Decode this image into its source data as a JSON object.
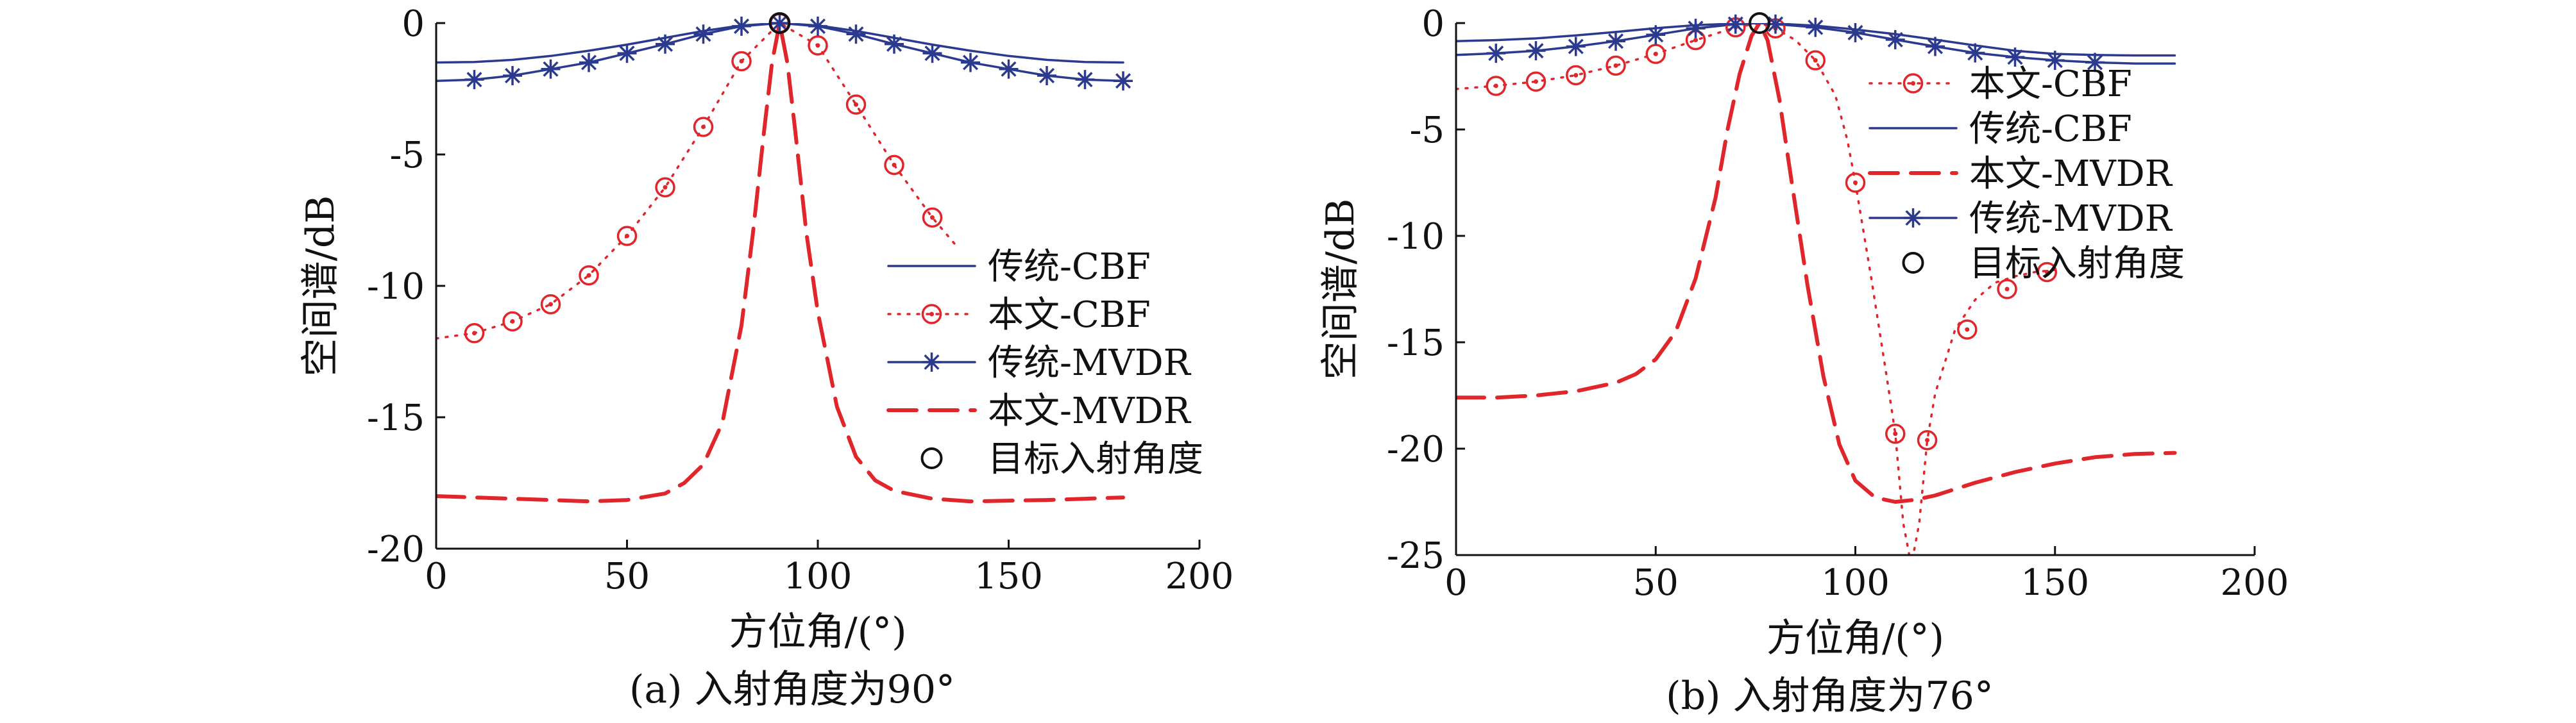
{
  "colors": {
    "blue": "#2b3a8f",
    "red": "#e0262b",
    "black": "#111111",
    "background": "#ffffff"
  },
  "chart_data": [
    {
      "type": "line",
      "caption": "(a) 入射角度为90°",
      "xlabel": "方位角/(°)",
      "ylabel": "空间谱/dB",
      "xlim": [
        0,
        200
      ],
      "ylim": [
        -20,
        0
      ],
      "xticks": [
        0,
        50,
        100,
        150,
        200
      ],
      "yticks": [
        0,
        -5,
        -10,
        -15,
        -20
      ],
      "xtick_labels": [
        "0",
        "50",
        "100",
        "150",
        "200"
      ],
      "ytick_labels": [
        "0",
        "-5",
        "-10",
        "-15",
        "-20"
      ],
      "grid": false,
      "legend_position": "bottom-right",
      "legend_order": [
        "trad_cbf",
        "prop_cbf",
        "trad_mvdr",
        "prop_mvdr",
        "target"
      ],
      "series": [
        {
          "key": "trad_cbf",
          "name": "传统-CBF",
          "color": "#2b3a8f",
          "style": "solid",
          "marker": "none",
          "x": [
            0,
            10,
            20,
            30,
            40,
            50,
            60,
            70,
            80,
            90,
            100,
            110,
            120,
            130,
            140,
            150,
            160,
            170,
            180
          ],
          "y": [
            -1.5,
            -1.48,
            -1.4,
            -1.25,
            -1.05,
            -0.82,
            -0.56,
            -0.3,
            -0.09,
            0,
            -0.09,
            -0.3,
            -0.56,
            -0.82,
            -1.05,
            -1.25,
            -1.4,
            -1.48,
            -1.5
          ]
        },
        {
          "key": "prop_cbf",
          "name": "本文-CBF",
          "color": "#e0262b",
          "style": "dotted",
          "marker": "circle-dot",
          "x": [
            0,
            10,
            20,
            30,
            40,
            50,
            60,
            70,
            80,
            90,
            100,
            110,
            120,
            130,
            137
          ],
          "y": [
            -12,
            -11.8,
            -11.35,
            -10.7,
            -9.6,
            -8.1,
            -6.25,
            -3.95,
            -1.45,
            0,
            -0.85,
            -3.1,
            -5.4,
            -7.4,
            -8.6
          ],
          "marker_x": [
            10,
            20,
            30,
            40,
            50,
            60,
            70,
            80,
            90,
            100,
            110,
            120,
            130
          ],
          "marker_y": [
            -11.8,
            -11.35,
            -10.7,
            -9.6,
            -8.1,
            -6.25,
            -3.95,
            -1.45,
            0,
            -0.85,
            -3.1,
            -5.4,
            -7.4
          ]
        },
        {
          "key": "trad_mvdr",
          "name": "传统-MVDR",
          "color": "#2b3a8f",
          "style": "solid",
          "marker": "asterisk",
          "x": [
            0,
            10,
            20,
            30,
            40,
            50,
            60,
            70,
            80,
            90,
            100,
            110,
            120,
            130,
            140,
            150,
            160,
            170,
            180
          ],
          "y": [
            -2.2,
            -2.15,
            -2.0,
            -1.75,
            -1.5,
            -1.15,
            -0.8,
            -0.42,
            -0.12,
            0,
            -0.12,
            -0.42,
            -0.8,
            -1.15,
            -1.5,
            -1.75,
            -2.0,
            -2.15,
            -2.2
          ],
          "marker_x": [
            10,
            20,
            30,
            40,
            50,
            60,
            70,
            80,
            90,
            100,
            110,
            120,
            130,
            140,
            150,
            160,
            170,
            180
          ],
          "marker_y": [
            -2.15,
            -2.0,
            -1.75,
            -1.5,
            -1.15,
            -0.8,
            -0.42,
            -0.12,
            0,
            -0.12,
            -0.42,
            -0.8,
            -1.15,
            -1.5,
            -1.75,
            -2.0,
            -2.15,
            -2.2
          ]
        },
        {
          "key": "prop_mvdr",
          "name": "本文-MVDR",
          "color": "#e0262b",
          "style": "dashed",
          "marker": "none",
          "x": [
            0,
            20,
            40,
            50,
            60,
            65,
            70,
            75,
            80,
            83,
            86,
            88,
            90,
            92,
            94,
            97,
            100,
            105,
            110,
            115,
            120,
            130,
            140,
            160,
            180
          ],
          "y": [
            -18.0,
            -18.1,
            -18.2,
            -18.15,
            -17.9,
            -17.5,
            -16.8,
            -15.2,
            -11.5,
            -8.0,
            -4.0,
            -1.5,
            0,
            -1.5,
            -4.0,
            -8.0,
            -11.0,
            -14.6,
            -16.5,
            -17.4,
            -17.8,
            -18.1,
            -18.2,
            -18.15,
            -18.05
          ]
        },
        {
          "key": "target",
          "name": "目标入射角度",
          "color": "#111111",
          "style": "none",
          "marker": "circle",
          "marker_x": [
            90
          ],
          "marker_y": [
            0
          ]
        }
      ]
    },
    {
      "type": "line",
      "caption": "(b) 入射角度为76°",
      "xlabel": "方位角/(°)",
      "ylabel": "空间谱/dB",
      "xlim": [
        0,
        200
      ],
      "ylim": [
        -25,
        0
      ],
      "xticks": [
        0,
        50,
        100,
        150,
        200
      ],
      "yticks": [
        0,
        -5,
        -10,
        -15,
        -20,
        -25
      ],
      "xtick_labels": [
        "0",
        "50",
        "100",
        "150",
        "200"
      ],
      "ytick_labels": [
        "0",
        "-5",
        "-10",
        "-15",
        "-20",
        "-25"
      ],
      "grid": false,
      "legend_position": "top-right",
      "legend_order": [
        "prop_cbf",
        "trad_cbf",
        "prop_mvdr",
        "trad_mvdr",
        "target"
      ],
      "series": [
        {
          "key": "trad_cbf",
          "name": "传统-CBF",
          "color": "#2b3a8f",
          "style": "solid",
          "marker": "none",
          "x": [
            0,
            10,
            20,
            30,
            40,
            50,
            60,
            70,
            76,
            80,
            90,
            100,
            110,
            120,
            130,
            140,
            150,
            160,
            170,
            180
          ],
          "y": [
            -0.85,
            -0.8,
            -0.72,
            -0.58,
            -0.42,
            -0.24,
            -0.1,
            -0.02,
            0,
            -0.02,
            -0.12,
            -0.3,
            -0.52,
            -0.78,
            -1.05,
            -1.3,
            -1.45,
            -1.5,
            -1.52,
            -1.52
          ]
        },
        {
          "key": "prop_cbf",
          "name": "本文-CBF",
          "color": "#e0262b",
          "style": "dotted",
          "marker": "circle-dot",
          "x": [
            0,
            10,
            20,
            30,
            40,
            50,
            60,
            70,
            76,
            80,
            85,
            90,
            95,
            98,
            100,
            104,
            108,
            110,
            112,
            114,
            116,
            118,
            120,
            125,
            130,
            135,
            140,
            145,
            150
          ],
          "y": [
            -3.1,
            -2.95,
            -2.75,
            -2.45,
            -2.0,
            -1.45,
            -0.8,
            -0.2,
            0,
            -0.25,
            -0.8,
            -1.75,
            -3.4,
            -5.5,
            -7.5,
            -12.0,
            -16.8,
            -19.3,
            -23.5,
            -25.5,
            -23.5,
            -19.6,
            -17.4,
            -14.4,
            -13.0,
            -12.2,
            -11.9,
            -11.7,
            -11.6
          ],
          "marker_x": [
            10,
            20,
            30,
            40,
            50,
            60,
            70,
            80,
            90,
            100,
            110,
            118,
            128,
            138,
            148
          ],
          "marker_y": [
            -2.95,
            -2.75,
            -2.45,
            -2.0,
            -1.45,
            -0.8,
            -0.2,
            -0.25,
            -1.75,
            -7.5,
            -19.3,
            -19.6,
            -14.4,
            -12.5,
            -11.7
          ]
        },
        {
          "key": "prop_mvdr",
          "name": "本文-MVDR",
          "color": "#e0262b",
          "style": "dashed",
          "marker": "none",
          "x": [
            0,
            10,
            20,
            30,
            40,
            45,
            50,
            55,
            60,
            65,
            68,
            71,
            74,
            76,
            78,
            81,
            84,
            88,
            92,
            96,
            100,
            105,
            110,
            115,
            120,
            130,
            140,
            150,
            160,
            170,
            180
          ],
          "y": [
            -17.6,
            -17.6,
            -17.5,
            -17.3,
            -16.9,
            -16.5,
            -15.8,
            -14.5,
            -12.0,
            -8.2,
            -5.0,
            -2.4,
            -0.6,
            0,
            -0.8,
            -3.6,
            -7.4,
            -12.3,
            -16.6,
            -19.8,
            -21.5,
            -22.3,
            -22.5,
            -22.4,
            -22.2,
            -21.6,
            -21.1,
            -20.7,
            -20.4,
            -20.25,
            -20.2
          ]
        },
        {
          "key": "trad_mvdr",
          "name": "传统-MVDR",
          "color": "#2b3a8f",
          "style": "solid",
          "marker": "asterisk",
          "x": [
            0,
            10,
            20,
            30,
            40,
            50,
            60,
            70,
            76,
            80,
            90,
            100,
            110,
            120,
            130,
            140,
            150,
            160,
            170,
            180
          ],
          "y": [
            -1.5,
            -1.42,
            -1.3,
            -1.1,
            -0.85,
            -0.55,
            -0.25,
            -0.05,
            0,
            -0.05,
            -0.2,
            -0.45,
            -0.78,
            -1.1,
            -1.4,
            -1.6,
            -1.75,
            -1.85,
            -1.9,
            -1.9
          ],
          "marker_x": [
            10,
            20,
            30,
            40,
            50,
            60,
            70,
            80,
            90,
            100,
            110,
            120,
            130,
            140,
            150,
            160
          ],
          "marker_y": [
            -1.42,
            -1.3,
            -1.1,
            -0.85,
            -0.55,
            -0.25,
            -0.05,
            -0.05,
            -0.2,
            -0.45,
            -0.78,
            -1.1,
            -1.4,
            -1.6,
            -1.75,
            -1.85
          ]
        },
        {
          "key": "target",
          "name": "目标入射角度",
          "color": "#111111",
          "style": "none",
          "marker": "circle",
          "marker_x": [
            76
          ],
          "marker_y": [
            0
          ]
        }
      ]
    }
  ]
}
